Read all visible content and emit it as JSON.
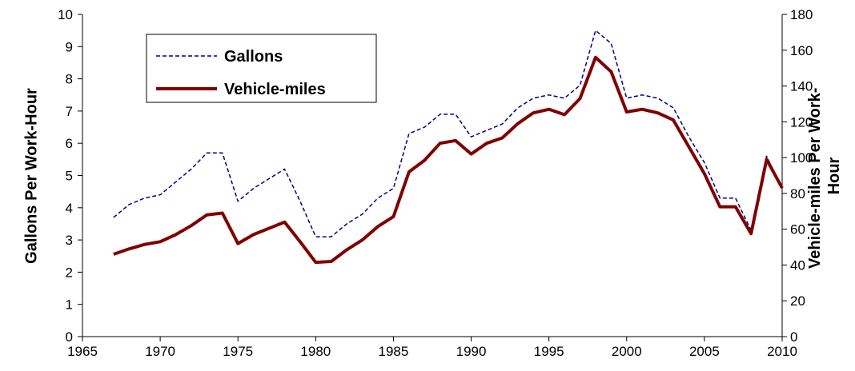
{
  "chart_data": {
    "type": "line",
    "y_label": "Gallons Per Work-Hour",
    "y2_label": [
      "Vehicle-miles Per Work-",
      "Hour"
    ],
    "x": [
      1967,
      1968,
      1969,
      1970,
      1971,
      1972,
      1973,
      1974,
      1975,
      1976,
      1977,
      1978,
      1979,
      1980,
      1981,
      1982,
      1983,
      1984,
      1985,
      1986,
      1987,
      1988,
      1989,
      1990,
      1991,
      1992,
      1993,
      1994,
      1995,
      1996,
      1997,
      1998,
      1999,
      2000,
      2001,
      2002,
      2003,
      2004,
      2005,
      2006,
      2007,
      2008,
      2009,
      2010
    ],
    "series": [
      {
        "name": "Gallons",
        "color": "#000080",
        "linestyle": "dashed",
        "axis": "y",
        "values": [
          3.7,
          4.1,
          4.3,
          4.4,
          4.8,
          5.2,
          5.7,
          5.7,
          4.2,
          4.6,
          4.9,
          5.2,
          4.2,
          3.1,
          3.1,
          3.5,
          3.8,
          4.3,
          4.6,
          6.3,
          6.5,
          6.9,
          6.9,
          6.2,
          6.4,
          6.6,
          7.1,
          7.4,
          7.5,
          7.4,
          7.8,
          9.5,
          9.1,
          7.4,
          7.5,
          7.4,
          7.1,
          6.2,
          5.4,
          4.3,
          4.3,
          3.3,
          5.6,
          4.6
        ]
      },
      {
        "name": "Vehicle-miles",
        "color": "#800000",
        "linestyle": "solid",
        "axis": "y2",
        "values": [
          46,
          49,
          51.5,
          53,
          57,
          62,
          68,
          69,
          52,
          57,
          60.5,
          64,
          53,
          41.5,
          42,
          48.5,
          54,
          61.5,
          67,
          92,
          98.5,
          108,
          109.5,
          102,
          108,
          111,
          119,
          125,
          127,
          124,
          133,
          156,
          148,
          125.5,
          127,
          125,
          121,
          106,
          91,
          72.5,
          72.5,
          57.5,
          99,
          83
        ]
      }
    ],
    "xlim": [
      1965,
      2010
    ],
    "xticks": [
      1965,
      1970,
      1975,
      1980,
      1985,
      1990,
      1995,
      2000,
      2005,
      2010
    ],
    "ylim": [
      0,
      10
    ],
    "yticks": [
      0,
      1,
      2,
      3,
      4,
      5,
      6,
      7,
      8,
      9,
      10
    ],
    "y2lim": [
      0,
      180
    ],
    "y2ticks": [
      0,
      20,
      40,
      60,
      80,
      100,
      120,
      140,
      160,
      180
    ],
    "legend": "upper left"
  }
}
